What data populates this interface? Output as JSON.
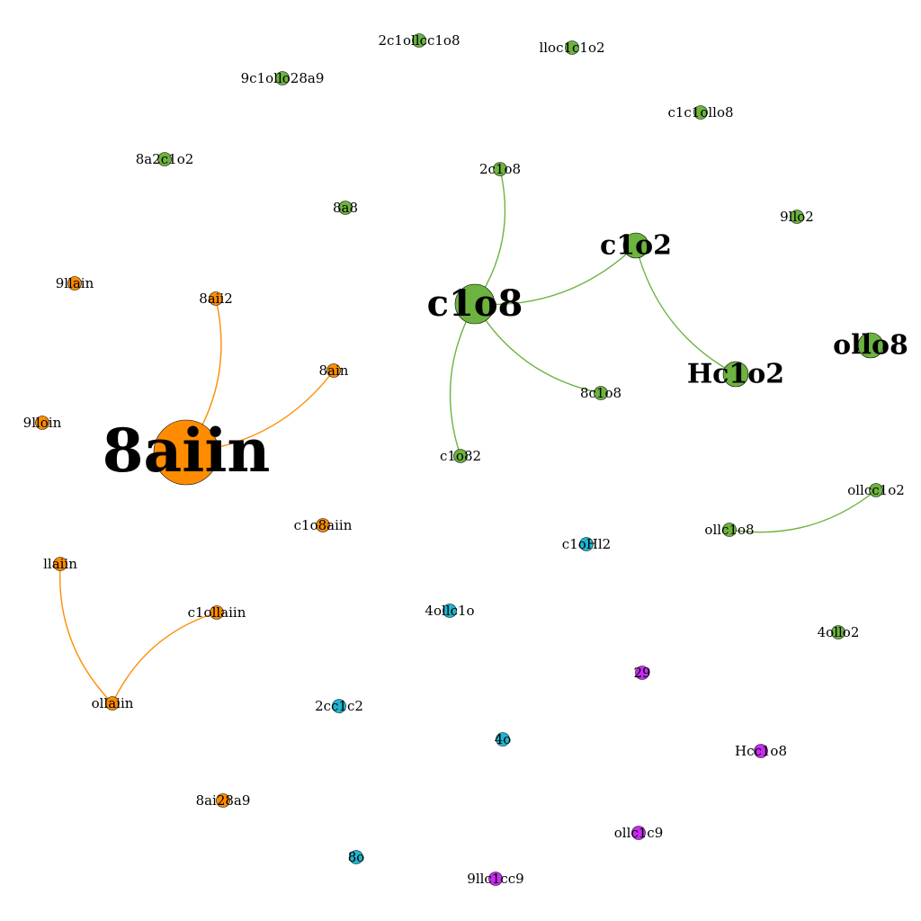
{
  "colors": {
    "green": "#6db33f",
    "orange": "#ff8c00",
    "cyan": "#1fb5d1",
    "magenta": "#c72cf0",
    "background": "#ffffff",
    "label": "#000000"
  },
  "nodes": [
    {
      "id": "n_saiin",
      "label": "8aiin",
      "group": "orange",
      "weight": 10
    },
    {
      "id": "n_saii2",
      "label": "8aii2",
      "group": "orange",
      "weight": 1
    },
    {
      "id": "n_sain",
      "label": "8ain",
      "group": "orange",
      "weight": 1
    },
    {
      "id": "n_qhain",
      "label": "9llain",
      "group": "orange",
      "weight": 1
    },
    {
      "id": "n_qhoiin",
      "label": "9lloin",
      "group": "orange",
      "weight": 1
    },
    {
      "id": "n_chodaiin",
      "label": "c1o8aiin",
      "group": "orange",
      "weight": 1
    },
    {
      "id": "n_haiin",
      "label": "llaiin",
      "group": "orange",
      "weight": 1
    },
    {
      "id": "n_chohaiin",
      "label": "c1ollaiin",
      "group": "orange",
      "weight": 1
    },
    {
      "id": "n_ohaiin",
      "label": "ollaiin",
      "group": "orange",
      "weight": 1
    },
    {
      "id": "n_saisdy",
      "label": "8ai28a9",
      "group": "orange",
      "weight": 1
    },
    {
      "id": "n_chos",
      "label": "c1o8",
      "group": "green",
      "weight": 6
    },
    {
      "id": "n_chor",
      "label": "c1o2",
      "group": "green",
      "weight": 3
    },
    {
      "id": "n_fchor",
      "label": "Hc1o2",
      "group": "green",
      "weight": 3
    },
    {
      "id": "n_ohos",
      "label": "ollo8",
      "group": "green",
      "weight": 3
    },
    {
      "id": "n_tchos",
      "label": "2c1o8",
      "group": "green",
      "weight": 1
    },
    {
      "id": "n_schos",
      "label": "8c1o8",
      "group": "green",
      "weight": 1
    },
    {
      "id": "n_chor2",
      "label": "c1o82",
      "group": "green",
      "weight": 1
    },
    {
      "id": "n_oheechor",
      "label": "ollcc1o2",
      "group": "green",
      "weight": 1
    },
    {
      "id": "n_oheechos",
      "label": "ollc1o8",
      "group": "green",
      "weight": 1
    },
    {
      "id": "n_sachor",
      "label": "8a2c1o2",
      "group": "green",
      "weight": 1
    },
    {
      "id": "n_sas",
      "label": "8a8",
      "group": "green",
      "weight": 1
    },
    {
      "id": "n_qchodysdy",
      "label": "9c1ollo28a9",
      "group": "green",
      "weight": 1
    },
    {
      "id": "n_tcholechos",
      "label": "2c1ollcc1o8",
      "group": "green",
      "weight": 1
    },
    {
      "id": "n_hoechor",
      "label": "lloc1c1o2",
      "group": "green",
      "weight": 1
    },
    {
      "id": "n_chohos",
      "label": "c1c1ollo8",
      "group": "green",
      "weight": 1
    },
    {
      "id": "n_qhor",
      "label": "9llo2",
      "group": "green",
      "weight": 1
    },
    {
      "id": "n_qohor",
      "label": "4ollo2",
      "group": "green",
      "weight": 1
    },
    {
      "id": "n_chfr",
      "label": "c1oHl2",
      "group": "cyan",
      "weight": 1
    },
    {
      "id": "n_qohecho",
      "label": "4ollc1o",
      "group": "cyan",
      "weight": 1
    },
    {
      "id": "n_tcecr",
      "label": "2cc1c2",
      "group": "cyan",
      "weight": 1
    },
    {
      "id": "n_qo",
      "label": "4o",
      "group": "cyan",
      "weight": 1
    },
    {
      "id": "n_so",
      "label": "8o",
      "group": "cyan",
      "weight": 1
    },
    {
      "id": "n_r9",
      "label": "29",
      "group": "magenta",
      "weight": 1
    },
    {
      "id": "n_fcos",
      "label": "Hcc1o8",
      "group": "magenta",
      "weight": 1
    },
    {
      "id": "n_ohec9",
      "label": "ollc1c9",
      "group": "magenta",
      "weight": 1
    },
    {
      "id": "n_qhecc9",
      "label": "9llc1cc9",
      "group": "magenta",
      "weight": 1
    }
  ],
  "edges": [
    {
      "source": "n_saiin",
      "target": "n_saii2",
      "group": "orange"
    },
    {
      "source": "n_saiin",
      "target": "n_sain",
      "group": "orange"
    },
    {
      "source": "n_haiin",
      "target": "n_ohaiin",
      "group": "orange"
    },
    {
      "source": "n_chohaiin",
      "target": "n_ohaiin",
      "group": "orange"
    },
    {
      "source": "n_chos",
      "target": "n_tchos",
      "group": "green"
    },
    {
      "source": "n_chos",
      "target": "n_chor",
      "group": "green"
    },
    {
      "source": "n_chos",
      "target": "n_schos",
      "group": "green"
    },
    {
      "source": "n_chos",
      "target": "n_chor2",
      "group": "green"
    },
    {
      "source": "n_chor",
      "target": "n_fchor",
      "group": "green"
    },
    {
      "source": "n_oheechos",
      "target": "n_oheechor",
      "group": "green"
    }
  ]
}
